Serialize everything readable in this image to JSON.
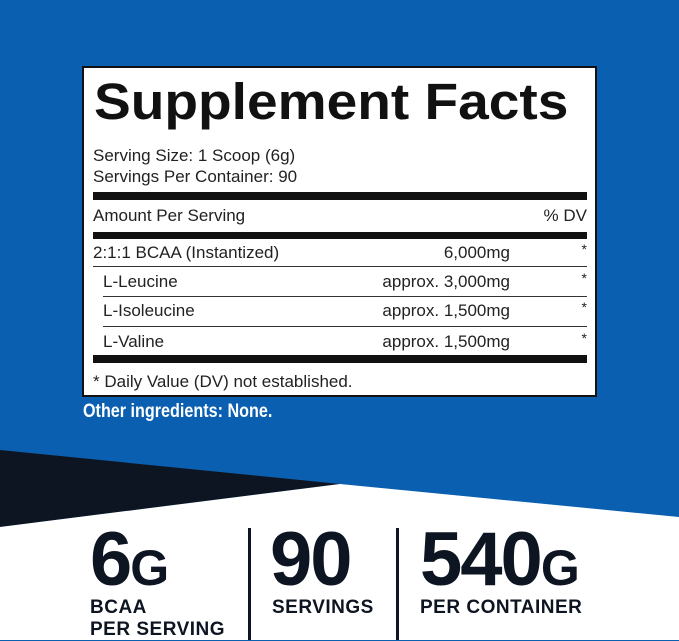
{
  "colors": {
    "background_blue": "#0a5fb0",
    "dark_navy": "#0e1522",
    "white": "#ffffff"
  },
  "facts": {
    "title": "Supplement Facts",
    "serving_size": "Serving Size: 1 Scoop (6g)",
    "servings_per_container": "Servings Per Container: 90",
    "amount_header": "Amount Per Serving",
    "dv_header": "% DV",
    "rows": [
      {
        "name": "2:1:1 BCAA (Instantized)",
        "amount": "6,000mg",
        "dv": "*"
      },
      {
        "name": "L-Leucine",
        "amount": "approx. 3,000mg",
        "dv": "*"
      },
      {
        "name": "L-Isoleucine",
        "amount": "approx. 1,500mg",
        "dv": "*"
      },
      {
        "name": "L-Valine",
        "amount": "approx. 1,500mg",
        "dv": "*"
      }
    ],
    "footnote": "* Daily Value (DV) not established."
  },
  "other_ingredients": "Other ingredients: None.",
  "stats": [
    {
      "value": "6",
      "unit": "G",
      "label1": "BCAA",
      "label2": "PER SERVING"
    },
    {
      "value": "90",
      "unit": "",
      "label1": "SERVINGS",
      "label2": ""
    },
    {
      "value": "540",
      "unit": "G",
      "label1": "PER CONTAINER",
      "label2": ""
    }
  ]
}
